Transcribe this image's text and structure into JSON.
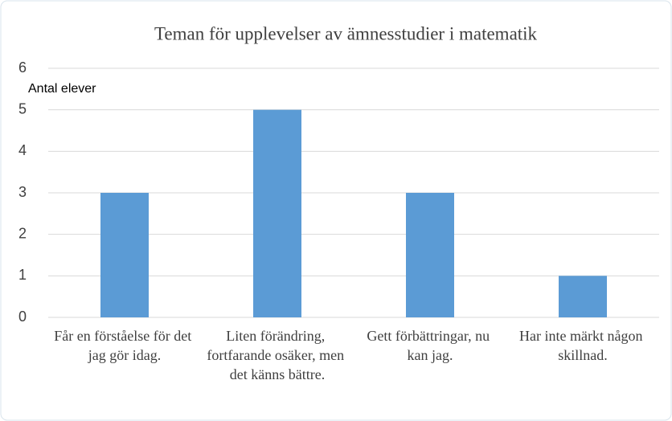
{
  "chart_data": {
    "type": "bar",
    "title": "Teman för upplevelser av ämnesstudier i matematik",
    "y_label": "Antal elever",
    "categories": [
      "Får en förståelse för det jag gör idag.",
      "Liten förändring, fortfarande osäker, men det känns bättre.",
      "Gett förbättringar, nu kan jag.",
      "Har inte märkt någon skillnad."
    ],
    "values": [
      3,
      5,
      3,
      1
    ],
    "color": "#5b9bd5",
    "ylim": [
      0,
      6
    ],
    "yticks": [
      0,
      1,
      2,
      3,
      4,
      5,
      6
    ],
    "grid": true
  }
}
